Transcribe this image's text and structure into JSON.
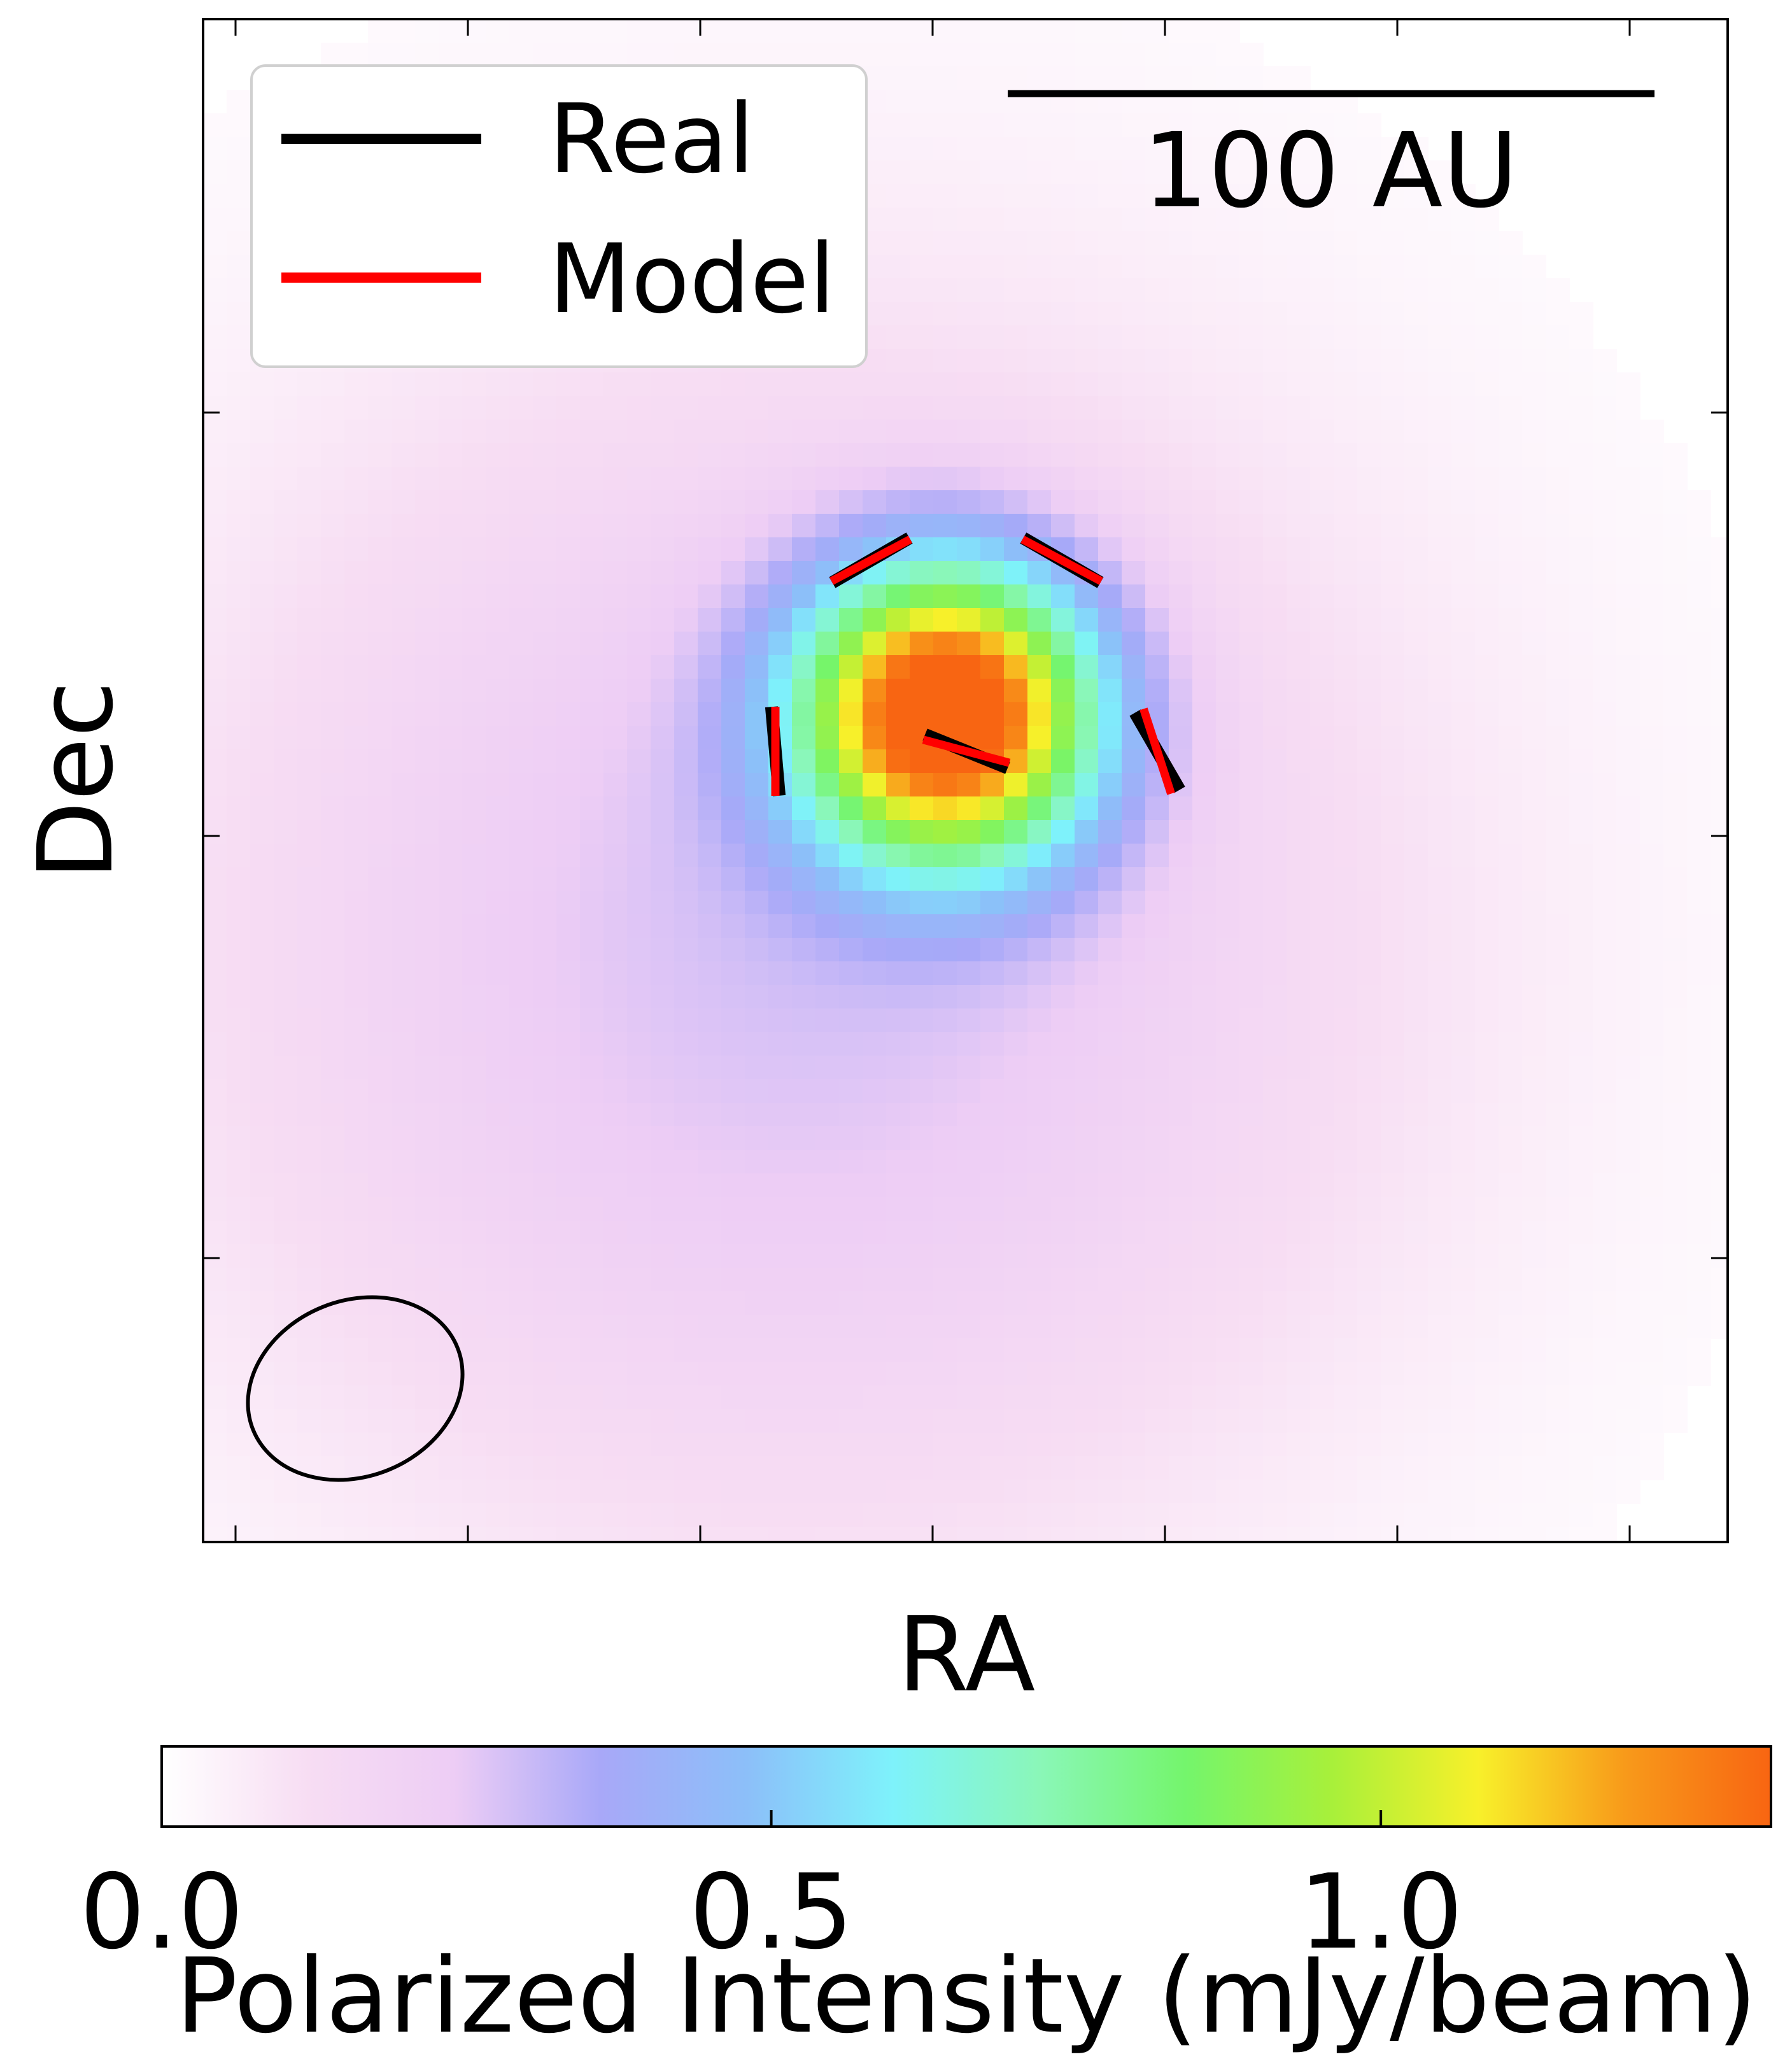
{
  "chart_data": {
    "type": "heatmap",
    "xlabel": "RA",
    "ylabel": "Dec",
    "legend": {
      "placement": "top-left",
      "entries": [
        {
          "label": "Real",
          "color": "#000000"
        },
        {
          "label": "Model",
          "color": "#ff0000"
        }
      ]
    },
    "scale_bar": {
      "label": "100 AU"
    },
    "colorbar": {
      "label": "Polarized Intensity (mJy/beam)",
      "ticks": [
        "0.0",
        "0.5",
        "1.0"
      ],
      "range": [
        0.0,
        1.32
      ],
      "colors": [
        "#ffffff",
        "#f7ddf3",
        "#edcdf5",
        "#a8a8f8",
        "#8cbff9",
        "#7ef2fb",
        "#8af7b8",
        "#74f56c",
        "#a8f03a",
        "#f8f02a",
        "#f89a1a",
        "#f86512"
      ]
    },
    "emission": {
      "peak": 1.3,
      "center": [
        -0.1,
        0.2
      ],
      "core_sigma": 0.55,
      "halo": {
        "amplitude": 0.28,
        "center": [
          -0.9,
          -1.0
        ],
        "sigma": 2.3
      },
      "units": "mJy/beam"
    },
    "vectors": [
      {
        "pos": [
          -0.5,
          1.0
        ],
        "angle_real": 30,
        "angle_model": 28
      },
      {
        "pos": [
          0.5,
          1.0
        ],
        "angle_real": -30,
        "angle_model": -28
      },
      {
        "pos": [
          -1.0,
          0.0
        ],
        "angle_real": -85,
        "angle_model": 90
      },
      {
        "pos": [
          0.0,
          0.0
        ],
        "angle_real": -22,
        "angle_model": -15
      },
      {
        "pos": [
          1.0,
          0.0
        ],
        "angle_real": -60,
        "angle_model": -72
      }
    ],
    "grid": false
  }
}
